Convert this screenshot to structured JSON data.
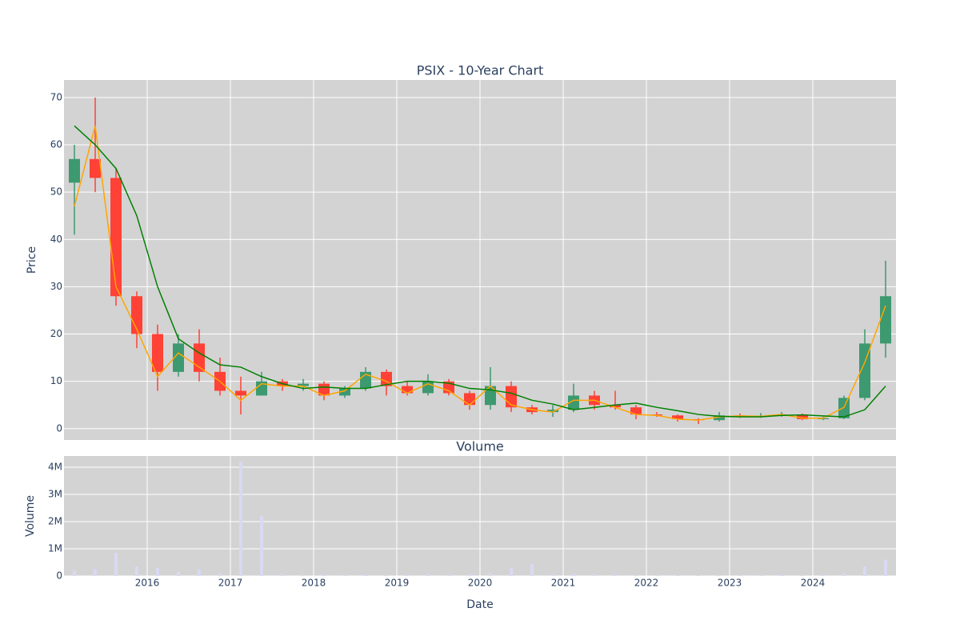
{
  "chart_data": [
    {
      "type": "candlestick",
      "title": "PSIX - 10-Year Chart",
      "ylabel": "Price",
      "x": [
        2015.125,
        2015.375,
        2015.625,
        2015.875,
        2016.125,
        2016.375,
        2016.625,
        2016.875,
        2017.125,
        2017.375,
        2017.625,
        2017.875,
        2018.125,
        2018.375,
        2018.625,
        2018.875,
        2019.125,
        2019.375,
        2019.625,
        2019.875,
        2020.125,
        2020.375,
        2020.625,
        2020.875,
        2021.125,
        2021.375,
        2021.625,
        2021.875,
        2022.125,
        2022.375,
        2022.625,
        2022.875,
        2023.125,
        2023.375,
        2023.625,
        2023.875,
        2024.125,
        2024.375,
        2024.625,
        2024.875
      ],
      "open": [
        52,
        57,
        53,
        28,
        20,
        12,
        18,
        12,
        8,
        7,
        10,
        9,
        9.5,
        7,
        8.5,
        12,
        9,
        7.5,
        10,
        7.5,
        5,
        9,
        4.5,
        3.5,
        4,
        7,
        5,
        4.5,
        3,
        2.8,
        2,
        1.8,
        2.8,
        2.6,
        2.7,
        3,
        2,
        2.2,
        6.5,
        18
      ],
      "high": [
        60,
        70,
        55,
        29,
        22,
        20,
        21,
        15,
        11,
        12,
        10.5,
        10.5,
        10,
        9,
        13,
        12.5,
        10,
        11.5,
        10.5,
        8,
        13,
        10,
        5,
        5,
        9.5,
        8,
        8,
        5,
        3.5,
        3,
        2.2,
        3.5,
        3.2,
        3.3,
        3.5,
        3.2,
        2.5,
        7,
        21,
        35.5
      ],
      "low": [
        41,
        50,
        26,
        17,
        8,
        11,
        10,
        7,
        3,
        7,
        8,
        8,
        6,
        6.5,
        8,
        7,
        7,
        7,
        7,
        4,
        4,
        3.5,
        3,
        2.5,
        3.5,
        4,
        4,
        2,
        2.5,
        1.5,
        1,
        1.5,
        2.3,
        2.3,
        2.5,
        1.8,
        1.8,
        2,
        6,
        15
      ],
      "close": [
        57,
        53,
        28,
        20,
        12,
        18,
        12,
        8,
        7,
        10,
        9,
        9.5,
        7,
        8.5,
        12,
        9,
        7.5,
        10,
        7.5,
        5,
        9,
        4.5,
        3.5,
        4,
        7,
        5,
        4.5,
        3,
        2.8,
        2,
        1.8,
        2.8,
        2.6,
        2.7,
        3,
        2,
        2.2,
        6.5,
        18,
        28
      ],
      "increasing_color": "#3d9970",
      "decreasing_color": "#ff4136",
      "lines": [
        {
          "color": "orange",
          "values": [
            47,
            64,
            30,
            21,
            11,
            16,
            13,
            10,
            6,
            9.5,
            9,
            9,
            7,
            8,
            11.5,
            10,
            7.5,
            9.5,
            8,
            5,
            9,
            5,
            4,
            3.5,
            6,
            6,
            4.5,
            3,
            2.8,
            2,
            1.8,
            2.5,
            2.7,
            2.6,
            3,
            2.2,
            2.2,
            4.5,
            14,
            26
          ]
        },
        {
          "color": "green",
          "values": [
            64,
            60,
            55,
            45,
            30,
            19,
            16,
            13.5,
            13,
            11,
            9.5,
            8.5,
            8.8,
            8.5,
            8.5,
            9.3,
            10,
            10,
            9.6,
            8.5,
            8.2,
            7.5,
            6,
            5.2,
            4,
            4.5,
            5,
            5.4,
            4.5,
            3.8,
            3,
            2.6,
            2.5,
            2.5,
            2.8,
            2.9,
            2.7,
            2.5,
            4,
            9
          ]
        }
      ],
      "xlim": [
        2015,
        2025
      ],
      "ylim": [
        -2.4,
        73.7
      ],
      "yticks": [
        0,
        10,
        20,
        30,
        40,
        50,
        60,
        70
      ],
      "grid": true
    },
    {
      "type": "bar",
      "title": "Volume",
      "ylabel": "Volume",
      "xlabel": "Date",
      "x": [
        2015.125,
        2015.375,
        2015.625,
        2015.875,
        2016.125,
        2016.375,
        2016.625,
        2016.875,
        2017.125,
        2017.375,
        2017.625,
        2017.875,
        2018.125,
        2018.375,
        2018.625,
        2018.875,
        2019.125,
        2019.375,
        2019.625,
        2019.875,
        2020.125,
        2020.375,
        2020.625,
        2020.875,
        2021.125,
        2021.375,
        2021.625,
        2021.875,
        2022.125,
        2022.375,
        2022.625,
        2022.875,
        2023.125,
        2023.375,
        2023.625,
        2023.875,
        2024.125,
        2024.375,
        2024.625,
        2024.875
      ],
      "values": [
        200000,
        250000,
        850000,
        350000,
        300000,
        150000,
        250000,
        100000,
        4200000,
        2200000,
        80000,
        50000,
        50000,
        40000,
        40000,
        40000,
        40000,
        60000,
        50000,
        60000,
        100000,
        300000,
        450000,
        60000,
        80000,
        60000,
        50000,
        40000,
        40000,
        30000,
        30000,
        40000,
        40000,
        40000,
        40000,
        40000,
        40000,
        100000,
        350000,
        600000
      ],
      "color": "#d9d9f3",
      "xlim": [
        2015,
        2025
      ],
      "xticks": [
        2016,
        2017,
        2018,
        2019,
        2020,
        2021,
        2022,
        2023,
        2024
      ],
      "ylim": [
        0,
        4410000
      ],
      "yticks": [
        0,
        {
          "value": 1000000,
          "label": "1M"
        },
        {
          "value": 2000000,
          "label": "2M"
        },
        {
          "value": 3000000,
          "label": "3M"
        },
        {
          "value": 4000000,
          "label": "4M"
        }
      ],
      "grid": true
    }
  ]
}
